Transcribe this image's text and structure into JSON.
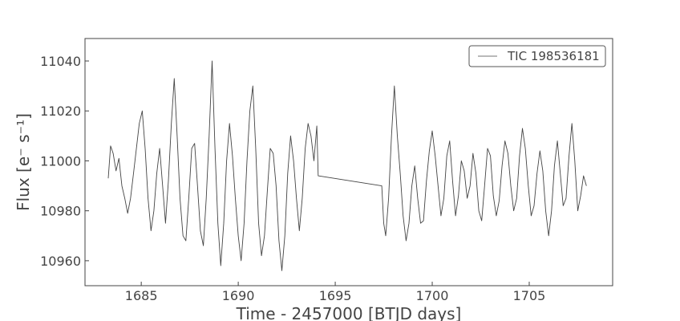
{
  "chart_data": {
    "type": "line",
    "xlabel": "Time - 2457000 [BTJD days]",
    "ylabel": "Flux [e⁻ s⁻¹]",
    "xlim": [
      1682.1,
      1709.3
    ],
    "ylim": [
      10950.0,
      11049.0
    ],
    "x_ticks": [
      1685,
      1690,
      1695,
      1700,
      1705
    ],
    "y_ticks": [
      10960,
      10980,
      11000,
      11020,
      11040
    ],
    "grid": false,
    "legend_position": "top-right",
    "line_color": "#444444",
    "series": [
      {
        "name": "TIC 198536181",
        "x": [
          1683.3,
          1683.42,
          1683.55,
          1683.7,
          1683.85,
          1684.0,
          1684.15,
          1684.3,
          1684.45,
          1684.6,
          1684.75,
          1684.9,
          1685.05,
          1685.2,
          1685.35,
          1685.5,
          1685.65,
          1685.8,
          1685.95,
          1686.1,
          1686.25,
          1686.4,
          1686.55,
          1686.7,
          1686.85,
          1687.0,
          1687.15,
          1687.3,
          1687.45,
          1687.6,
          1687.75,
          1687.9,
          1688.05,
          1688.2,
          1688.35,
          1688.5,
          1688.65,
          1688.8,
          1688.95,
          1689.1,
          1689.25,
          1689.4,
          1689.55,
          1689.7,
          1689.85,
          1690.0,
          1690.15,
          1690.3,
          1690.45,
          1690.6,
          1690.75,
          1690.9,
          1691.05,
          1691.2,
          1691.35,
          1691.5,
          1691.65,
          1691.8,
          1691.95,
          1692.1,
          1692.25,
          1692.4,
          1692.55,
          1692.7,
          1692.85,
          1693.0,
          1693.15,
          1693.3,
          1693.45,
          1693.6,
          1693.75,
          1693.9,
          1694.05,
          1694.12,
          1697.4,
          1697.5,
          1697.6,
          1697.75,
          1697.9,
          1698.05,
          1698.2,
          1698.35,
          1698.5,
          1698.65,
          1698.8,
          1698.95,
          1699.1,
          1699.25,
          1699.4,
          1699.55,
          1699.7,
          1699.85,
          1700.0,
          1700.15,
          1700.3,
          1700.45,
          1700.6,
          1700.75,
          1700.9,
          1701.05,
          1701.2,
          1701.35,
          1701.5,
          1701.65,
          1701.8,
          1701.95,
          1702.1,
          1702.25,
          1702.4,
          1702.55,
          1702.7,
          1702.85,
          1703.0,
          1703.15,
          1703.3,
          1703.45,
          1703.6,
          1703.75,
          1703.9,
          1704.05,
          1704.2,
          1704.35,
          1704.5,
          1704.65,
          1704.8,
          1704.95,
          1705.1,
          1705.25,
          1705.4,
          1705.55,
          1705.7,
          1705.85,
          1706.0,
          1706.15,
          1706.3,
          1706.45,
          1706.6,
          1706.75,
          1706.9,
          1707.05,
          1707.2,
          1707.35,
          1707.5,
          1707.65,
          1707.8,
          1707.95
        ],
        "y": [
          10993,
          11006,
          11003,
          10996,
          11001,
          10990,
          10985,
          10979,
          10985,
          10995,
          11005,
          11015,
          11020,
          11005,
          10985,
          10972,
          10980,
          10995,
          11005,
          10990,
          10975,
          10992,
          11015,
          11033,
          11010,
          10985,
          10970,
          10968,
          10985,
          11005,
          11007,
          10990,
          10972,
          10966,
          10985,
          11010,
          11040,
          11005,
          10975,
          10958,
          10975,
          11000,
          11015,
          11002,
          10985,
          10970,
          10960,
          10975,
          11000,
          11020,
          11030,
          11005,
          10975,
          10962,
          10970,
          10988,
          11005,
          11003,
          10990,
          10968,
          10956,
          10970,
          10995,
          11010,
          11000,
          10985,
          10972,
          10985,
          11005,
          11015,
          11010,
          11000,
          11014,
          10994,
          10990,
          10975,
          10970,
          10985,
          11010,
          11030,
          11010,
          10995,
          10978,
          10968,
          10975,
          10990,
          10998,
          10985,
          10975,
          10976,
          10992,
          11004,
          11012,
          11002,
          10990,
          10978,
          10985,
          11002,
          11008,
          10992,
          10978,
          10986,
          11000,
          10996,
          10985,
          10990,
          11003,
          10995,
          10980,
          10976,
          10990,
          11005,
          11002,
          10986,
          10978,
          10984,
          10998,
          11008,
          11003,
          10990,
          10980,
          10985,
          11002,
          11013,
          11005,
          10990,
          10978,
          10982,
          10995,
          11004,
          10996,
          10980,
          10970,
          10980,
          10998,
          11008,
          10995,
          10982,
          10985,
          11002,
          11015,
          11000,
          10980,
          10986,
          10994,
          10990
        ]
      }
    ]
  }
}
